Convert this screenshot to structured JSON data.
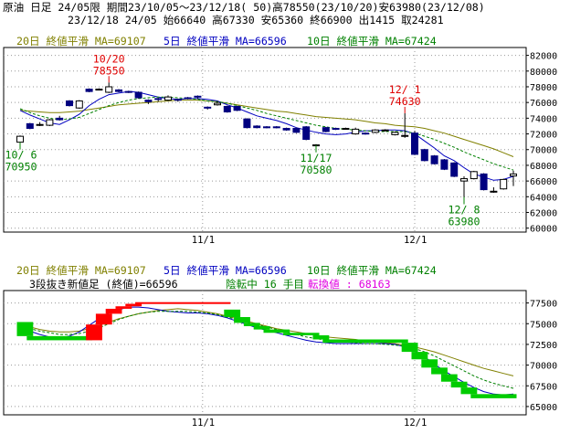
{
  "header": {
    "line1": "原油 日足 24/05限 期間23/10/05～23/12/18( 50)高78550(23/10/20)安63980(23/12/08)",
    "line2": "23/12/18 24/05 始66640 高67330 安65360 終66900 出1415 取24281"
  },
  "colors": {
    "ma20": "#808000",
    "ma5": "#0000c0",
    "ma10": "#008000",
    "bull": "#ffffff",
    "bear": "#000080",
    "kagi_up": "#ff0000",
    "kagi_down": "#00cc00",
    "annot_red": "#e00000",
    "annot_green": "#008000",
    "reversal": "#e000e0"
  },
  "chart_data": [
    {
      "type": "candlestick",
      "legend": [
        {
          "id": "ma20",
          "label": "20日 終値平滑 MA=69107"
        },
        {
          "id": "ma5",
          "label": "5日 終値平滑 MA=66596"
        },
        {
          "id": "ma10",
          "label": "10日 終値平滑 MA=67424"
        }
      ],
      "ylim": [
        59500,
        83000
      ],
      "yticks": [
        60000,
        62000,
        64000,
        66000,
        68000,
        70000,
        72000,
        74000,
        76000,
        78000,
        80000,
        82000
      ],
      "ytick_labels": [
        "60000",
        "62000",
        "64000",
        "66000",
        "68000",
        "70000",
        "72000",
        "74000",
        "76000",
        "78000",
        "80000",
        "82000"
      ],
      "xtick_labels": [
        {
          "i": 18.5,
          "label": "11/1"
        },
        {
          "i": 40,
          "label": "12/1"
        }
      ],
      "ohlc": [
        [
          70950,
          71800,
          70950,
          71700
        ],
        [
          73300,
          73400,
          72600,
          72700
        ],
        [
          73100,
          73500,
          73000,
          73200
        ],
        [
          73100,
          73900,
          73000,
          73800
        ],
        [
          74000,
          74300,
          73700,
          73800
        ],
        [
          76200,
          76300,
          75500,
          75600
        ],
        [
          75300,
          76300,
          75200,
          76200
        ],
        [
          77700,
          77800,
          77300,
          77400
        ],
        [
          77700,
          77800,
          77600,
          77700
        ],
        [
          77300,
          78550,
          77200,
          78000
        ],
        [
          77600,
          77700,
          77300,
          77400
        ],
        [
          77400,
          77500,
          77200,
          77300
        ],
        [
          77300,
          77400,
          76500,
          76600
        ],
        [
          76300,
          76400,
          75800,
          76100
        ],
        [
          76500,
          76600,
          76100,
          76400
        ],
        [
          76300,
          76900,
          76200,
          76700
        ],
        [
          76400,
          76500,
          76100,
          76300
        ],
        [
          76600,
          76700,
          76400,
          76500
        ],
        [
          76800,
          76900,
          76500,
          76700
        ],
        [
          75400,
          75500,
          75100,
          75300
        ],
        [
          75700,
          76200,
          75600,
          75900
        ],
        [
          75500,
          75600,
          74700,
          74800
        ],
        [
          75500,
          75600,
          74900,
          75000
        ],
        [
          73900,
          74000,
          72700,
          72800
        ],
        [
          73000,
          73100,
          72700,
          72800
        ],
        [
          72900,
          73000,
          72700,
          72800
        ],
        [
          72900,
          73000,
          72700,
          72800
        ],
        [
          72700,
          72800,
          72400,
          72500
        ],
        [
          72700,
          72800,
          72100,
          72200
        ],
        [
          72900,
          73000,
          71200,
          71300
        ],
        [
          70580,
          70700,
          70580,
          70600
        ],
        [
          72800,
          72900,
          72200,
          72300
        ],
        [
          72700,
          72800,
          72500,
          72600
        ],
        [
          72700,
          72800,
          72600,
          72700
        ],
        [
          72000,
          72800,
          71900,
          72600
        ],
        [
          72100,
          72200,
          71900,
          72000
        ],
        [
          72200,
          72600,
          72100,
          72500
        ],
        [
          72500,
          72600,
          72400,
          72500
        ],
        [
          71900,
          72300,
          71800,
          72200
        ],
        [
          71700,
          74630,
          71500,
          71800
        ],
        [
          72100,
          72400,
          69300,
          69400
        ],
        [
          70000,
          70100,
          68500,
          68600
        ],
        [
          69200,
          69300,
          68100,
          68200
        ],
        [
          68700,
          68800,
          67400,
          67500
        ],
        [
          68300,
          68400,
          66500,
          66600
        ],
        [
          66000,
          66600,
          63980,
          66300
        ],
        [
          66300,
          67300,
          66200,
          67200
        ],
        [
          66900,
          67000,
          64800,
          64900
        ],
        [
          64600,
          65200,
          64500,
          64700
        ],
        [
          65000,
          66300,
          64900,
          66200
        ],
        [
          66640,
          67330,
          65360,
          66900
        ]
      ],
      "series": [
        {
          "id": "ma20",
          "values": [
            75000,
            74900,
            74800,
            74700,
            74700,
            74800,
            74900,
            75100,
            75300,
            75500,
            75700,
            75800,
            75900,
            76000,
            76100,
            76200,
            76300,
            76300,
            76300,
            76200,
            76100,
            75900,
            75700,
            75500,
            75300,
            75100,
            74900,
            74800,
            74600,
            74400,
            74200,
            74100,
            74000,
            73900,
            73800,
            73600,
            73400,
            73300,
            73100,
            73000,
            72900,
            72700,
            72400,
            72100,
            71700,
            71300,
            70900,
            70500,
            70100,
            69600,
            69100
          ]
        },
        {
          "id": "ma5",
          "values": [
            75000,
            74400,
            73900,
            73400,
            73200,
            73800,
            74500,
            75600,
            76400,
            77000,
            77200,
            77400,
            77300,
            77000,
            76700,
            76500,
            76400,
            76500,
            76500,
            76400,
            76200,
            75700,
            75300,
            74800,
            74300,
            74000,
            73700,
            73300,
            72800,
            72500,
            72200,
            72000,
            71900,
            72000,
            72200,
            72400,
            72400,
            72500,
            72500,
            72400,
            72000,
            71100,
            70200,
            69200,
            68600,
            67700,
            66900,
            66500,
            66100,
            66200,
            66600
          ]
        },
        {
          "id": "ma10",
          "values": [
            75200,
            74700,
            74300,
            74000,
            73800,
            73900,
            74100,
            74600,
            75100,
            75600,
            76000,
            76300,
            76500,
            76600,
            76700,
            76700,
            76600,
            76500,
            76400,
            76200,
            76100,
            75900,
            75600,
            75300,
            75000,
            74600,
            74300,
            74000,
            73700,
            73400,
            73100,
            72900,
            72700,
            72600,
            72500,
            72400,
            72300,
            72300,
            72300,
            72300,
            72100,
            71700,
            71300,
            70800,
            70300,
            69700,
            69200,
            68700,
            68200,
            67800,
            67400
          ]
        }
      ],
      "annotations": [
        {
          "i": 9,
          "price": 78550,
          "date": "10/20",
          "value": "78550",
          "color": "annot_red",
          "pos": "above"
        },
        {
          "i": 39,
          "price": 74630,
          "date": "12/ 1",
          "value": "74630",
          "color": "annot_red",
          "pos": "above"
        },
        {
          "i": 0,
          "price": 70950,
          "date": "10/ 6",
          "value": "70950",
          "color": "annot_green",
          "pos": "below"
        },
        {
          "i": 30,
          "price": 70580,
          "date": "11/17",
          "value": "70580",
          "color": "annot_green",
          "pos": "below"
        },
        {
          "i": 45,
          "price": 63980,
          "date": "12/ 8",
          "value": "63980",
          "color": "annot_green",
          "pos": "below"
        }
      ]
    },
    {
      "type": "three-line-break",
      "legend": [
        {
          "id": "ma20",
          "label": "20日 終値平滑 MA=69107"
        },
        {
          "id": "ma5",
          "label": "5日 終値平滑 MA=66596"
        },
        {
          "id": "ma10",
          "label": "10日 終値平滑 MA=67424"
        }
      ],
      "subtitle": [
        {
          "text": "3段抜き新値足 (終値)=66596",
          "color": "#000000"
        },
        {
          "text": "陰転中  16  手目",
          "color": "#008000"
        },
        {
          "text": "転換値 : 68163",
          "color": "#e000e0"
        }
      ],
      "ylim": [
        64000,
        79000
      ],
      "yticks": [
        65000,
        67500,
        70000,
        72500,
        75000,
        77500
      ],
      "ytick_labels": [
        "65000",
        "67500",
        "70000",
        "72500",
        "75000",
        "77500"
      ],
      "xtick_labels": [
        {
          "i": 18.5,
          "label": "11/1"
        },
        {
          "i": 40,
          "label": "12/1"
        }
      ],
      "bricks": [
        {
          "from": 0,
          "to": 1,
          "open": 75200,
          "close": 73500,
          "dir": "down"
        },
        {
          "from": 1,
          "to": 7,
          "open": 73500,
          "close": 73000,
          "dir": "down"
        },
        {
          "from": 7,
          "to": 8,
          "open": 73000,
          "close": 74900,
          "dir": "up"
        },
        {
          "from": 8,
          "to": 9,
          "open": 74900,
          "close": 76200,
          "dir": "up"
        },
        {
          "from": 9,
          "to": 10,
          "open": 76200,
          "close": 76800,
          "dir": "up"
        },
        {
          "from": 10,
          "to": 11,
          "open": 76800,
          "close": 77100,
          "dir": "up"
        },
        {
          "from": 11,
          "to": 12,
          "open": 77100,
          "close": 77400,
          "dir": "up"
        },
        {
          "from": 12,
          "to": 21,
          "open": 77400,
          "close": 77600,
          "dir": "up"
        },
        {
          "from": 21,
          "to": 22,
          "open": 76700,
          "close": 75800,
          "dir": "down"
        },
        {
          "from": 22,
          "to": 23,
          "open": 75800,
          "close": 75100,
          "dir": "down"
        },
        {
          "from": 23,
          "to": 24,
          "open": 75100,
          "close": 74700,
          "dir": "down"
        },
        {
          "from": 24,
          "to": 25,
          "open": 74700,
          "close": 74300,
          "dir": "down"
        },
        {
          "from": 25,
          "to": 27,
          "open": 74300,
          "close": 73900,
          "dir": "down"
        },
        {
          "from": 27,
          "to": 30,
          "open": 73900,
          "close": 73600,
          "dir": "down"
        },
        {
          "from": 30,
          "to": 31,
          "open": 73600,
          "close": 73100,
          "dir": "down"
        },
        {
          "from": 31,
          "to": 39,
          "open": 73100,
          "close": 72700,
          "dir": "down"
        },
        {
          "from": 39,
          "to": 40,
          "open": 72700,
          "close": 71600,
          "dir": "down"
        },
        {
          "from": 40,
          "to": 41,
          "open": 71600,
          "close": 70700,
          "dir": "down"
        },
        {
          "from": 41,
          "to": 42,
          "open": 70700,
          "close": 69700,
          "dir": "down"
        },
        {
          "from": 42,
          "to": 43,
          "open": 69700,
          "close": 68900,
          "dir": "down"
        },
        {
          "from": 43,
          "to": 44,
          "open": 68900,
          "close": 68000,
          "dir": "down"
        },
        {
          "from": 44,
          "to": 45,
          "open": 68000,
          "close": 67300,
          "dir": "down"
        },
        {
          "from": 45,
          "to": 46,
          "open": 67300,
          "close": 66500,
          "dir": "down"
        },
        {
          "from": 46,
          "to": 50,
          "open": 66500,
          "close": 66000,
          "dir": "down"
        }
      ],
      "series": [
        {
          "id": "ma20",
          "values": [
            74900,
            74600,
            74300,
            74100,
            74000,
            74000,
            74100,
            74400,
            74800,
            75200,
            75600,
            75900,
            76200,
            76400,
            76600,
            76700,
            76800,
            76700,
            76600,
            76400,
            76200,
            75900,
            75600,
            75300,
            75000,
            74700,
            74400,
            74200,
            74000,
            73800,
            73600,
            73400,
            73300,
            73200,
            73100,
            72900,
            72800,
            72700,
            72600,
            72400,
            72200,
            71900,
            71600,
            71200,
            70800,
            70400,
            70000,
            69600,
            69300,
            69000,
            68700
          ]
        },
        {
          "id": "ma5",
          "values": [
            74600,
            74100,
            73700,
            73400,
            73300,
            73500,
            74000,
            74800,
            75600,
            76300,
            76700,
            77000,
            77000,
            76900,
            76700,
            76500,
            76400,
            76300,
            76300,
            76200,
            76000,
            75700,
            75300,
            74900,
            74500,
            74200,
            73900,
            73600,
            73300,
            73000,
            72800,
            72700,
            72600,
            72600,
            72600,
            72600,
            72600,
            72600,
            72500,
            72200,
            71700,
            71000,
            70100,
            69300,
            68600,
            67900,
            67300,
            66800,
            66500,
            66400,
            66500
          ]
        },
        {
          "id": "ma10",
          "values": [
            74700,
            74400,
            74100,
            73900,
            73700,
            73700,
            73800,
            74100,
            74500,
            75000,
            75500,
            75900,
            76200,
            76400,
            76500,
            76500,
            76500,
            76500,
            76400,
            76300,
            76100,
            75800,
            75500,
            75200,
            74900,
            74600,
            74300,
            74000,
            73700,
            73400,
            73200,
            73000,
            72900,
            72800,
            72700,
            72600,
            72600,
            72500,
            72400,
            72300,
            72000,
            71600,
            71100,
            70500,
            69900,
            69300,
            68700,
            68200,
            67800,
            67500,
            67200
          ]
        }
      ]
    }
  ]
}
